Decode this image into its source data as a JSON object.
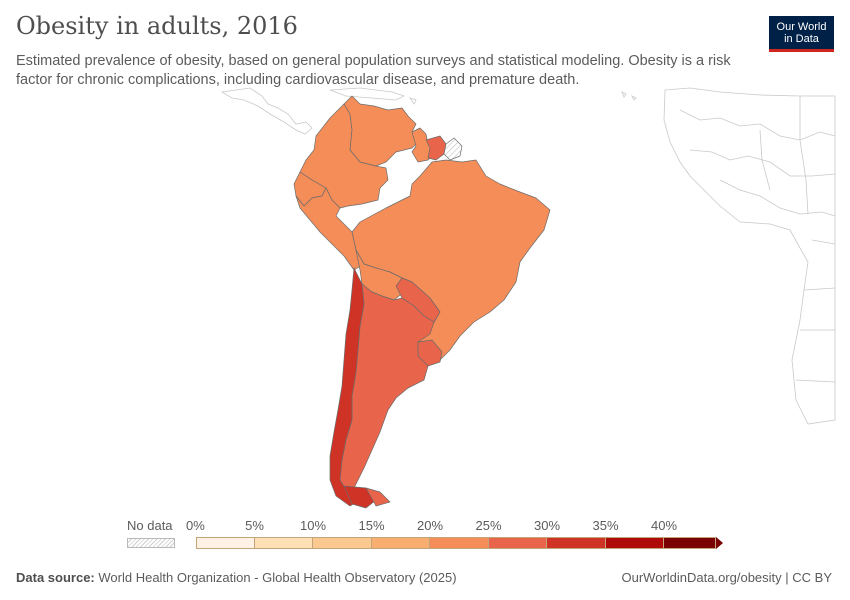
{
  "title": "Obesity in adults, 2016",
  "subtitle": "Estimated prevalence of obesity, based on general population surveys and statistical modeling. Obesity is a risk factor for chronic complications, including cardiovascular disease, and premature death.",
  "logo": {
    "line1": "Our World",
    "line2": "in Data"
  },
  "legend": {
    "no_data_label": "No data",
    "ticks": [
      "0%",
      "5%",
      "10%",
      "15%",
      "20%",
      "25%",
      "30%",
      "35%",
      "40%"
    ],
    "bins": [
      {
        "from": 0,
        "to": 5,
        "color": "#fff1e4"
      },
      {
        "from": 5,
        "to": 10,
        "color": "#fde0b6"
      },
      {
        "from": 10,
        "to": 15,
        "color": "#fbc990"
      },
      {
        "from": 15,
        "to": 20,
        "color": "#f8ae70"
      },
      {
        "from": 20,
        "to": 25,
        "color": "#f58d58"
      },
      {
        "from": 25,
        "to": 30,
        "color": "#e8644a"
      },
      {
        "from": 30,
        "to": 35,
        "color": "#cf3325"
      },
      {
        "from": 35,
        "to": 40,
        "color": "#ae0a0a"
      },
      {
        "from": 40,
        "to": 45,
        "color": "#7a0000"
      }
    ]
  },
  "countries": [
    {
      "name": "Colombia",
      "bin": 4
    },
    {
      "name": "Venezuela",
      "bin": 4
    },
    {
      "name": "Guyana",
      "bin": 4
    },
    {
      "name": "Suriname",
      "bin": 5
    },
    {
      "name": "French Guiana",
      "bin": null
    },
    {
      "name": "Ecuador",
      "bin": 4
    },
    {
      "name": "Peru",
      "bin": 4
    },
    {
      "name": "Brazil",
      "bin": 4
    },
    {
      "name": "Bolivia",
      "bin": 4
    },
    {
      "name": "Paraguay",
      "bin": 5
    },
    {
      "name": "Chile",
      "bin": 6
    },
    {
      "name": "Argentina",
      "bin": 5
    },
    {
      "name": "Uruguay",
      "bin": 5
    }
  ],
  "footer": {
    "source_label": "Data source:",
    "source_text": "World Health Organization - Global Health Observatory (2025)",
    "link": "OurWorldinData.org/obesity | CC BY"
  }
}
